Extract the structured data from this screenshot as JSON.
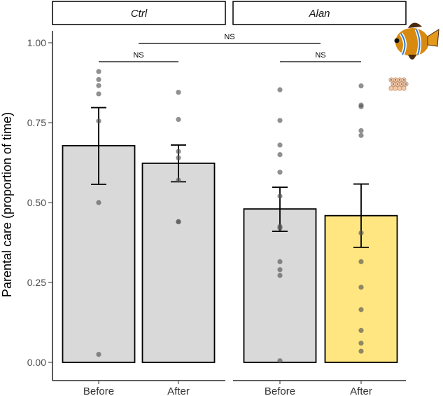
{
  "colors": {
    "bar_default": "#d9d9d9",
    "bar_highlight": "#ffe680",
    "bar_stroke": "#000000",
    "point": "#555555",
    "strip_fill": "#ffffff",
    "strip_stroke": "#000000"
  },
  "decoration": {
    "icon": "clownfish-with-eggs-icon"
  },
  "chart_data": {
    "type": "bar",
    "ylabel": "Parental care (proportion of time)",
    "xlabel": "",
    "ylim": [
      0,
      1.05
    ],
    "yticks": [
      "0.00",
      "0.25",
      "0.50",
      "0.75",
      "1.00"
    ],
    "grid": false,
    "panels": [
      {
        "name": "Ctrl",
        "categories": [
          "Before",
          "After"
        ],
        "means": [
          0.678,
          0.623
        ],
        "error_low": [
          0.557,
          0.565
        ],
        "error_high": [
          0.797,
          0.68
        ],
        "highlight": [
          false,
          false
        ],
        "points": [
          [
            0.91,
            0.885,
            0.866,
            0.84,
            0.755,
            0.5,
            0.025
          ],
          [
            0.845,
            0.76,
            0.66,
            0.64,
            0.57,
            0.44,
            0.44
          ]
        ]
      },
      {
        "name": "Alan",
        "categories": [
          "Before",
          "After"
        ],
        "means": [
          0.48,
          0.459
        ],
        "error_low": [
          0.41,
          0.36
        ],
        "error_high": [
          0.548,
          0.558
        ],
        "highlight": [
          false,
          true
        ],
        "points": [
          [
            0.853,
            0.757,
            0.68,
            0.65,
            0.595,
            0.52,
            0.425,
            0.42,
            0.315,
            0.29,
            0.272,
            0.005
          ],
          [
            0.865,
            0.805,
            0.8,
            0.725,
            0.71,
            0.405,
            0.315,
            0.235,
            0.165,
            0.1,
            0.06,
            0.035
          ]
        ]
      }
    ],
    "comparisons": [
      {
        "label": "NS",
        "scope": "Ctrl Before vs Ctrl After"
      },
      {
        "label": "NS",
        "scope": "Alan Before vs Alan After"
      },
      {
        "label": "NS",
        "scope": "Ctrl Before vs Alan After"
      }
    ]
  }
}
